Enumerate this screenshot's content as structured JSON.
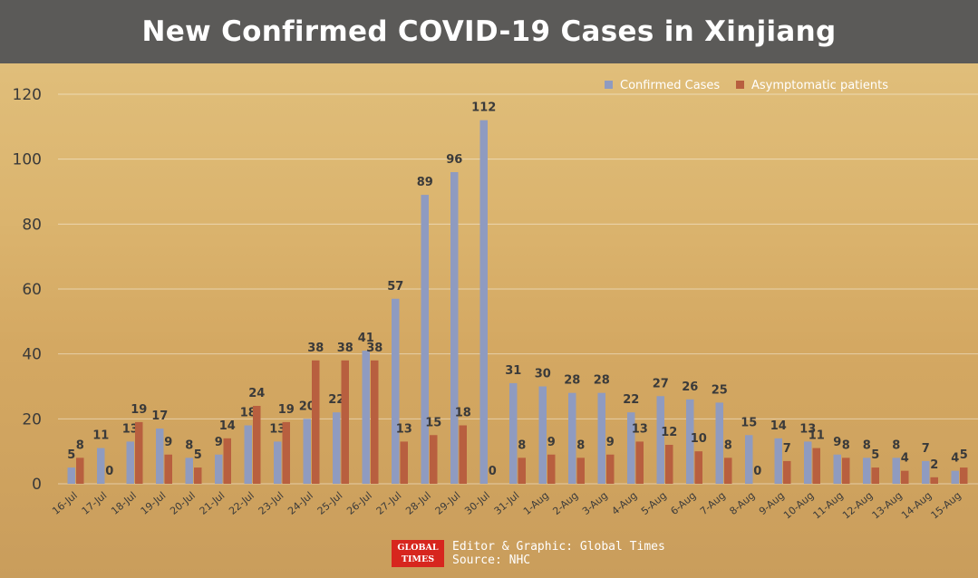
{
  "header": {
    "title": "New Confirmed COVID-19 Cases in Xinjiang"
  },
  "footer": {
    "logo_line1": "GLOBAL",
    "logo_line2": "TIMES",
    "editor": "Editor & Graphic: Global Times",
    "source": "Source: NHC"
  },
  "colors": {
    "confirmed": "#8f9bc0",
    "asymptomatic": "#b85f3f",
    "header_bg": "#5b5a58",
    "axis_text": "#3a3a3a"
  },
  "chart_data": {
    "type": "bar",
    "title": "New Confirmed COVID-19 Cases in Xinjiang",
    "xlabel": "",
    "ylabel": "",
    "ylim": [
      0,
      120
    ],
    "yticks": [
      0,
      20,
      40,
      60,
      80,
      100,
      120
    ],
    "grid": true,
    "legend": "top-right",
    "categories": [
      "16-Jul",
      "17-Jul",
      "18-Jul",
      "19-Jul",
      "20-Jul",
      "21-Jul",
      "22-Jul",
      "23-Jul",
      "24-Jul",
      "25-Jul",
      "26-Jul",
      "27-Jul",
      "28-Jul",
      "29-Jul",
      "30-Jul",
      "31-Jul",
      "1-Aug",
      "2-Aug",
      "3-Aug",
      "4-Aug",
      "5-Aug",
      "6-Aug",
      "7-Aug",
      "8-Aug",
      "9-Aug",
      "10-Aug",
      "11-Aug",
      "12-Aug",
      "13-Aug",
      "14-Aug",
      "15-Aug"
    ],
    "series": [
      {
        "name": "Confirmed Cases",
        "values": [
          5,
          11,
          13,
          17,
          8,
          9,
          18,
          13,
          20,
          22,
          41,
          57,
          89,
          96,
          112,
          31,
          30,
          28,
          28,
          22,
          27,
          26,
          25,
          15,
          14,
          13,
          9,
          8,
          8,
          7,
          4
        ]
      },
      {
        "name": "Asymptomatic patients",
        "values": [
          8,
          0,
          19,
          9,
          5,
          14,
          24,
          19,
          38,
          38,
          38,
          13,
          15,
          18,
          0,
          8,
          9,
          8,
          9,
          13,
          12,
          10,
          8,
          0,
          7,
          11,
          8,
          5,
          4,
          2,
          5
        ]
      }
    ]
  }
}
